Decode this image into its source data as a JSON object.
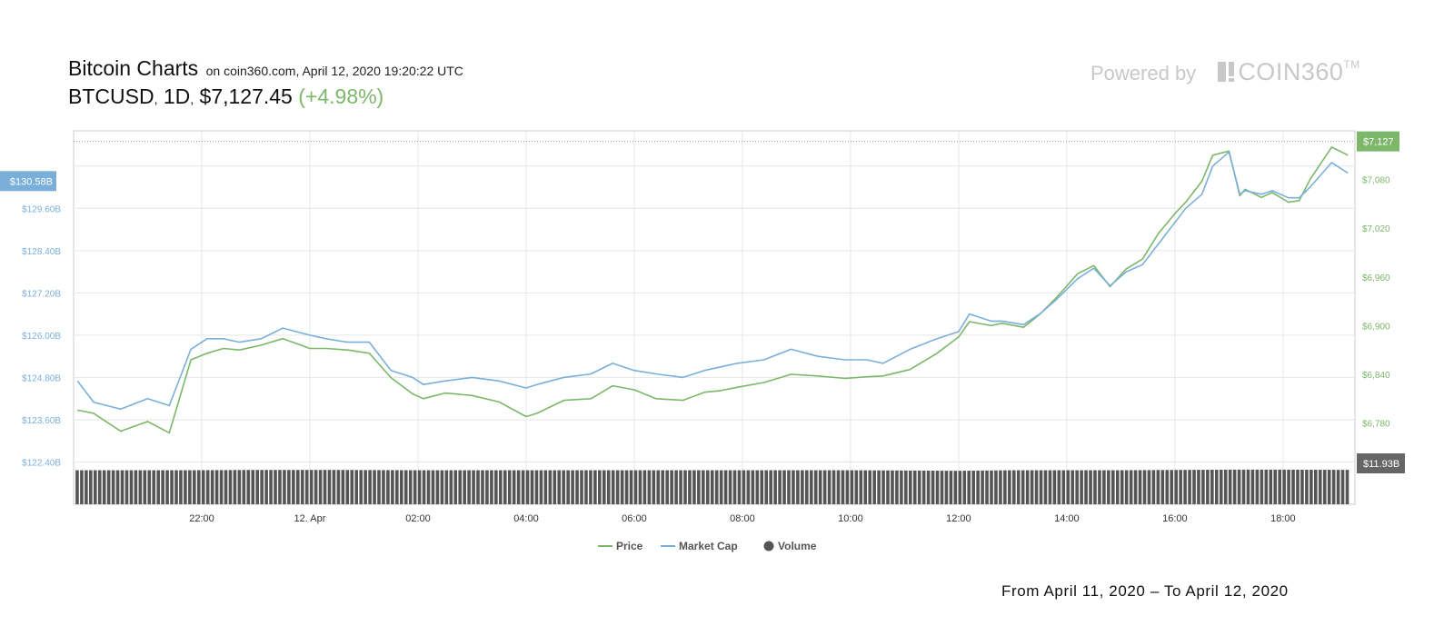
{
  "header": {
    "title": "Bitcoin Charts",
    "subtitle": "on coin360.com, April 12, 2020 19:20:22 UTC",
    "pair": "BTCUSD",
    "interval": "1D",
    "price": "$7,127.45",
    "change": "(+4.98%)"
  },
  "branding": {
    "powered_by": "Powered by",
    "logo_text": "COIN360",
    "logo_tm": "TM"
  },
  "footer": {
    "range": "From April 11, 2020 – To April 12, 2020"
  },
  "colors": {
    "price": "#7cb76a",
    "market_cap": "#7aafd9",
    "volume": "#555555",
    "grid": "#e6e6e6"
  },
  "chart_data": {
    "type": "line",
    "x_tick_labels": [
      "22:00",
      "12. Apr",
      "02:00",
      "04:00",
      "06:00",
      "08:00",
      "10:00",
      "12:00",
      "14:00",
      "16:00",
      "18:00"
    ],
    "x_tick_hours": [
      22,
      24,
      26,
      28,
      30,
      32,
      34,
      36,
      38,
      40,
      42
    ],
    "x_range_hours": [
      19.63,
      43.33
    ],
    "left_axis": {
      "label_values": [
        "$122.40B",
        "$123.60B",
        "$124.80B",
        "$126.00B",
        "$127.20B",
        "$128.40B",
        "$129.60B"
      ],
      "ylim": [
        121.2,
        131.8
      ],
      "current": "$130.58B"
    },
    "right_axis": {
      "label_values": [
        "$6,780",
        "$6,840",
        "$6,900",
        "$6,960",
        "$7,020",
        "$7,080"
      ],
      "ylim": [
        6680,
        7140
      ],
      "current": "$7,127"
    },
    "volume_current": "$11.93B",
    "legend": [
      "Price",
      "Market Cap",
      "Volume"
    ],
    "legend_position": "bottom-center",
    "series": [
      {
        "name": "Price",
        "axis": "right",
        "units": "USD",
        "x": [
          19.7,
          20.0,
          20.5,
          21.0,
          21.4,
          21.8,
          22.1,
          22.4,
          22.7,
          23.1,
          23.5,
          24.0,
          24.3,
          24.7,
          25.1,
          25.5,
          25.9,
          26.1,
          26.5,
          27.0,
          27.5,
          28.0,
          28.2,
          28.7,
          29.2,
          29.6,
          30.0,
          30.4,
          30.9,
          31.3,
          31.6,
          31.9,
          32.4,
          32.9,
          33.4,
          33.9,
          34.3,
          34.6,
          35.1,
          35.6,
          36.0,
          36.2,
          36.6,
          36.8,
          37.2,
          37.5,
          37.8,
          38.2,
          38.5,
          38.8,
          39.1,
          39.4,
          39.7,
          40.0,
          40.2,
          40.5,
          40.7,
          41.0,
          41.2,
          41.3,
          41.6,
          41.8,
          42.1,
          42.3,
          42.5,
          42.9,
          43.2
        ],
        "y": [
          6796,
          6792,
          6770,
          6782,
          6768,
          6858,
          6866,
          6872,
          6870,
          6876,
          6884,
          6872,
          6872,
          6870,
          6866,
          6836,
          6816,
          6810,
          6817,
          6814,
          6806,
          6788,
          6792,
          6808,
          6810,
          6826,
          6821,
          6810,
          6808,
          6818,
          6820,
          6824,
          6830,
          6840,
          6838,
          6835,
          6837,
          6838,
          6846,
          6866,
          6886,
          6905,
          6900,
          6903,
          6898,
          6914,
          6934,
          6964,
          6974,
          6948,
          6970,
          6982,
          7014,
          7038,
          7052,
          7078,
          7110,
          7115,
          7060,
          7068,
          7058,
          7064,
          7052,
          7054,
          7080,
          7120,
          7110
        ]
      },
      {
        "name": "Market Cap",
        "axis": "left",
        "units": "USD billions",
        "x": [
          19.7,
          20.0,
          20.5,
          21.0,
          21.4,
          21.8,
          22.1,
          22.4,
          22.7,
          23.1,
          23.5,
          24.0,
          24.3,
          24.7,
          25.1,
          25.5,
          25.9,
          26.1,
          26.5,
          27.0,
          27.5,
          28.0,
          28.2,
          28.7,
          29.2,
          29.6,
          30.0,
          30.4,
          30.9,
          31.3,
          31.6,
          31.9,
          32.4,
          32.9,
          33.4,
          33.9,
          34.3,
          34.6,
          35.1,
          35.6,
          36.0,
          36.2,
          36.6,
          36.8,
          37.2,
          37.5,
          37.8,
          38.2,
          38.5,
          38.8,
          39.1,
          39.4,
          39.7,
          40.0,
          40.2,
          40.5,
          40.7,
          41.0,
          41.2,
          41.3,
          41.6,
          41.8,
          42.1,
          42.3,
          42.5,
          42.9,
          43.2
        ],
        "y": [
          124.7,
          124.1,
          123.9,
          124.2,
          124.0,
          125.6,
          125.9,
          125.9,
          125.8,
          125.9,
          126.2,
          126.0,
          125.9,
          125.8,
          125.8,
          125.0,
          124.8,
          124.6,
          124.7,
          124.8,
          124.7,
          124.5,
          124.6,
          124.8,
          124.9,
          125.2,
          125.0,
          124.9,
          124.8,
          125.0,
          125.1,
          125.2,
          125.3,
          125.6,
          125.4,
          125.3,
          125.3,
          125.2,
          125.6,
          125.9,
          126.1,
          126.6,
          126.4,
          126.4,
          126.3,
          126.6,
          127.0,
          127.6,
          127.9,
          127.4,
          127.8,
          128.0,
          128.6,
          129.2,
          129.6,
          130.0,
          130.8,
          131.2,
          130.0,
          130.1,
          130.0,
          130.1,
          129.9,
          129.9,
          130.2,
          130.9,
          130.6
        ]
      },
      {
        "name": "Volume",
        "axis": "volume",
        "units": "USD billions",
        "x": [
          19.7,
          21.8,
          23.0,
          24.5,
          26.0,
          28.0,
          30.0,
          32.0,
          34.0,
          36.0,
          37.0,
          38.0,
          39.0,
          40.0,
          41.0,
          42.0,
          43.2
        ],
        "y": [
          11.8,
          11.8,
          11.9,
          11.9,
          11.8,
          11.8,
          11.8,
          11.8,
          11.8,
          11.6,
          11.8,
          11.8,
          11.8,
          11.9,
          12.0,
          12.0,
          11.93
        ]
      }
    ]
  }
}
